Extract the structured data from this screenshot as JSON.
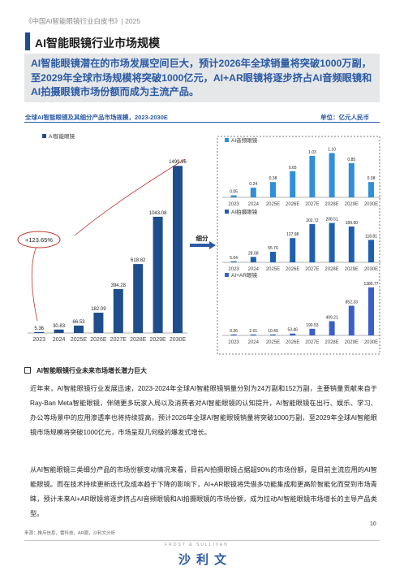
{
  "header": {
    "report_title": "《中国AI智能眼镜行业白皮书》| 2025"
  },
  "section": {
    "title": "AI智能眼镜行业市场规模"
  },
  "summary": {
    "text": "AI智能眼镜潜在的市场发展空间巨大，预计2026年全球销量将突破1000万副，至2029年全球市场规模将突破1000亿元，AI+AR眼镜将逐步挤占AI音频眼镜和AI拍摄眼镜市场份额而成为主流产品。"
  },
  "chart_header": {
    "title": "全球AI智能眼镜及其细分产品市场规模，2023-2030E",
    "unit": "单位：亿元人民币"
  },
  "colors": {
    "accent": "#1f4e8c",
    "bar_main": "#1f4e8c",
    "bar_audio": "#2f8fd8",
    "bar_shoot": "#1f5fb0",
    "bar_ar": "#3a5fc8",
    "summary_bg": "#e6e7e9"
  },
  "chart_data": [
    {
      "type": "bar",
      "categories": [
        "2023",
        "2024",
        "2025E",
        "2026E",
        "2027E",
        "2028E",
        "2029E",
        "2030E"
      ],
      "series": [
        {
          "name": "AI智能眼镜",
          "values": [
            5.36,
            30.83,
            66.53,
            182.09,
            394.28,
            618.82,
            1043.08,
            1499.96
          ]
        }
      ],
      "annotations": [
        "+123.65%"
      ],
      "ylim": [
        0,
        1560
      ]
    },
    {
      "type": "bar",
      "categories": [
        "2023",
        "2024",
        "2025E",
        "2026E",
        "2027E",
        "2028E",
        "2029E",
        "2030E"
      ],
      "series": [
        {
          "name": "AI音频眼镜",
          "values": [
            0.05,
            0.24,
            0.38,
            0.65,
            1.03,
            1.1,
            0.85,
            0.38
          ]
        }
      ],
      "ylim": [
        0,
        1.15
      ]
    },
    {
      "type": "bar",
      "categories": [
        "2023",
        "2024",
        "2025E",
        "2026E",
        "2027E",
        "2028E",
        "2029E",
        "2030E"
      ],
      "series": [
        {
          "name": "AI拍摄眼镜",
          "values": [
            5.04,
            28.58,
            55.76,
            127.98,
            202.72,
            208.51,
            189.9,
            118.81
          ]
        }
      ],
      "ylim": [
        0,
        215
      ]
    },
    {
      "type": "bar",
      "categories": [
        "2023",
        "2024",
        "2025E",
        "2026E",
        "2027E",
        "2028E",
        "2029E",
        "2030E"
      ],
      "series": [
        {
          "name": "AI+AR眼镜",
          "values": [
            0.26,
            2.01,
            10.4,
            53.46,
            190.53,
            409.21,
            852.33,
            1380.77
          ]
        }
      ],
      "ylim": [
        0,
        1400
      ]
    }
  ],
  "split_label": "细分",
  "subsection": {
    "heading": "AI智能眼镜行业未来市场增长潜力巨大"
  },
  "paragraphs": [
    "近年来，AI智能眼镜行业发展迅速，2023-2024年全球AI智能眼镜销量分别为24万副和152万副，主要销量贡献来自于Ray-Ban Meta智能眼镜，伴随更多玩家入局以及消费者对AI智能眼镜的认知提升，AI智能眼镜在出行、娱乐、学习、办公等场景中的应用渗透率也将持续提高，预计2026年全球AI智能眼镜销量将突破1000万副，至2029年全球AI智能眼镜市场规模将突破1000亿元，市场呈现几何级的爆发式增长。",
    "从AI智能眼镜三类细分产品的市场份额变动情况来看，目前AI拍摄眼镜占据超90%的市场份额，是目前主流应用的AI智能眼镜。而在技术持续更新迭代及成本趋于下降的影响下，AI+AR眼镜将凭借多功能集成和更高阶智能化而受到市场青睐，预计未来AI+AR眼镜将逐步挤占AI音频眼镜和AI拍摄眼镜的市场份额，成为拉动AI智能眼镜市场增长的主导产品类型。"
  ],
  "footer": {
    "source": "来源：推斥信息，雷科技，AR圈，沙利文分析",
    "page": "10",
    "brand_en": "FROST & SULLIVAN",
    "brand_cn": "沙利文"
  }
}
